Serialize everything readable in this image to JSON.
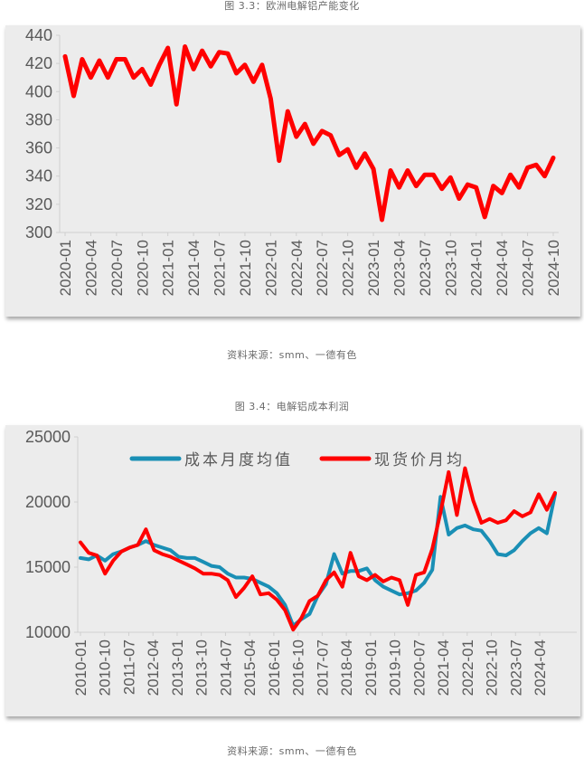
{
  "figures": [
    {
      "caption": "图 3.3：欧洲电解铝产能变化",
      "source": "资料来源：smm、一德有色"
    },
    {
      "caption": "图 3.4：电解铝成本利润",
      "source": "资料来源：smm、一德有色"
    }
  ],
  "chart_data": [
    {
      "type": "line",
      "title": "图 3.3：欧洲电解铝产能变化",
      "xlabel": "",
      "ylabel": "",
      "ylim": [
        300,
        440
      ],
      "yticks": [
        300,
        320,
        340,
        360,
        380,
        400,
        420,
        440
      ],
      "xtick_labels": [
        "2020-01",
        "2020-04",
        "2020-07",
        "2020-10",
        "2021-01",
        "2021-04",
        "2021-07",
        "2021-10",
        "2022-01",
        "2022-04",
        "2022-07",
        "2022-10",
        "2023-01",
        "2023-04",
        "2023-07",
        "2023-10",
        "2024-01",
        "2024-04",
        "2024-07",
        "2024-10"
      ],
      "grid": false,
      "legend": null,
      "series": [
        {
          "name": "欧洲电解铝产能",
          "color": "#ff0000",
          "start": "2020-01",
          "values": [
            425,
            397,
            423,
            410,
            422,
            410,
            423,
            423,
            410,
            416,
            405,
            419,
            431,
            391,
            432,
            416,
            429,
            418,
            428,
            427,
            413,
            419,
            407,
            419,
            395,
            351,
            386,
            368,
            377,
            363,
            372,
            369,
            355,
            359,
            346,
            356,
            345,
            309,
            344,
            332,
            344,
            333,
            341,
            341,
            331,
            339,
            324,
            334,
            332,
            311,
            333,
            328,
            341,
            332,
            346,
            348,
            340,
            353
          ]
        }
      ]
    },
    {
      "type": "line",
      "title": "图 3.4：电解铝成本利润",
      "xlabel": "",
      "ylabel": "",
      "ylim": [
        10000,
        25000
      ],
      "yticks": [
        10000,
        15000,
        20000,
        25000
      ],
      "xtick_labels": [
        "2010-01",
        "2010-10",
        "2011-07",
        "2012-04",
        "2013-01",
        "2013-10",
        "2014-07",
        "2015-04",
        "2016-01",
        "2016-10",
        "2017-07",
        "2018-04",
        "2019-01",
        "2019-10",
        "2020-07",
        "2021-04",
        "2022-01",
        "2022-10",
        "2023-07",
        "2024-04"
      ],
      "grid": false,
      "legend": {
        "position": "top",
        "entries": [
          "成本月度均值",
          "现货价月均"
        ]
      },
      "x_start": "2010-01",
      "x_step": "quarterly-sampled monthly",
      "series": [
        {
          "name": "成本月度均值",
          "color": "#1a8fb5",
          "values": [
            15700,
            15600,
            15900,
            15500,
            16000,
            16200,
            16500,
            16700,
            17000,
            16700,
            16500,
            16300,
            15800,
            15700,
            15700,
            15400,
            15100,
            15000,
            14500,
            14200,
            14200,
            14100,
            13800,
            13500,
            13000,
            12100,
            10500,
            11000,
            11400,
            12800,
            13700,
            16000,
            14500,
            14700,
            14700,
            14900,
            14000,
            13500,
            13200,
            12900,
            13000,
            13200,
            13800,
            14800,
            20400,
            17500,
            18000,
            18200,
            17900,
            17800,
            17000,
            16000,
            15900,
            16300,
            17000,
            17600,
            18000,
            17600,
            20600
          ]
        },
        {
          "name": "现货价月均",
          "color": "#ff0000",
          "values": [
            16900,
            16100,
            15900,
            14500,
            15500,
            16200,
            16500,
            16700,
            17900,
            16300,
            16000,
            15800,
            15500,
            15200,
            14900,
            14500,
            14500,
            14400,
            14000,
            12700,
            13400,
            14300,
            12900,
            13000,
            12500,
            11700,
            10200,
            11100,
            12400,
            12800,
            14000,
            14600,
            13500,
            16100,
            14300,
            14000,
            14400,
            13900,
            14200,
            14000,
            12100,
            14400,
            14600,
            16400,
            19200,
            22300,
            19000,
            22600,
            20100,
            18400,
            18700,
            18400,
            18600,
            19300,
            18900,
            19200,
            20600,
            19400,
            20700
          ]
        }
      ]
    }
  ]
}
